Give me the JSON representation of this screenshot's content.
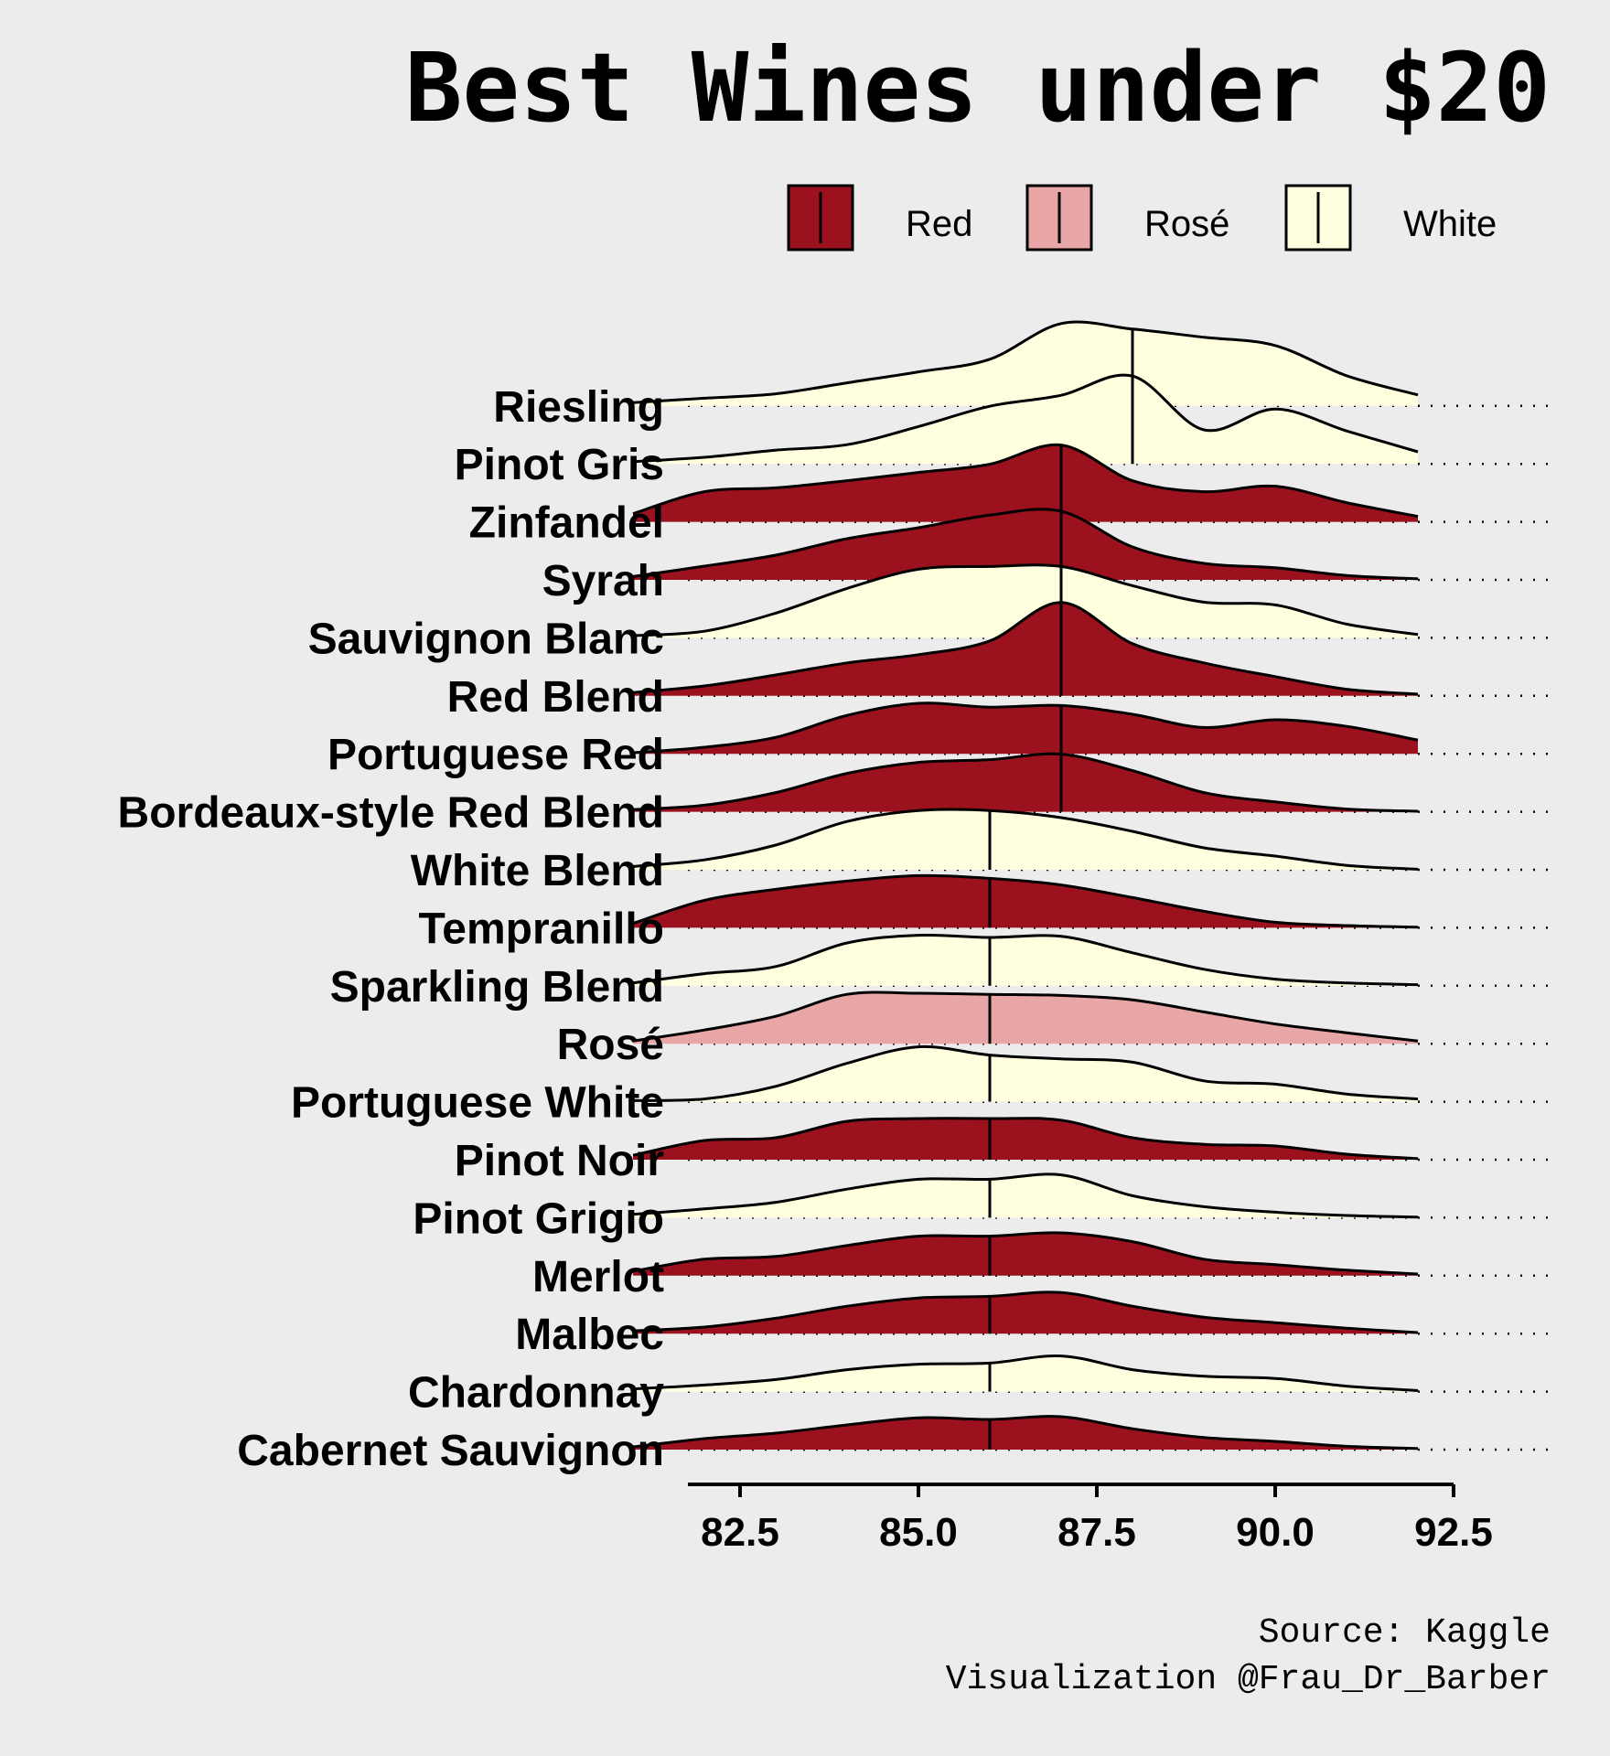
{
  "chart_data": {
    "type": "ridgeline",
    "title": "Best Wines under $20",
    "xlabel": "",
    "ylabel": "",
    "xlim": [
      80.8,
      92.5
    ],
    "x_ticks": [
      82.5,
      85.0,
      87.5,
      90.0,
      92.5
    ],
    "x_tick_labels": [
      "82.5",
      "85.0",
      "87.5",
      "90.0",
      "92.5"
    ],
    "x_range": [
      81,
      92
    ],
    "grid": false,
    "legend": {
      "placement": "top-right",
      "entries": [
        {
          "key": "Red",
          "label": "Red",
          "color": "#9b111e"
        },
        {
          "key": "Rosé",
          "label": "Rosé",
          "color": "#e8a6a6"
        },
        {
          "key": "White",
          "label": "White",
          "color": "#ffffe0"
        }
      ]
    },
    "density_x": [
      81,
      82,
      83,
      84,
      85,
      86,
      87,
      88,
      89,
      90,
      91,
      92
    ],
    "series": [
      {
        "name": "Cabernet Sauvignon",
        "type": "Red",
        "median": 86,
        "density": [
          0.05,
          0.2,
          0.3,
          0.45,
          0.58,
          0.55,
          0.6,
          0.38,
          0.22,
          0.15,
          0.06,
          0.02
        ]
      },
      {
        "name": "Chardonnay",
        "type": "White",
        "median": 86,
        "density": [
          0.05,
          0.12,
          0.22,
          0.4,
          0.5,
          0.52,
          0.65,
          0.4,
          0.28,
          0.24,
          0.1,
          0.02
        ]
      },
      {
        "name": "Malbec",
        "type": "Red",
        "median": 86,
        "density": [
          0.05,
          0.12,
          0.28,
          0.5,
          0.65,
          0.68,
          0.75,
          0.5,
          0.3,
          0.2,
          0.1,
          0.02
        ]
      },
      {
        "name": "Merlot",
        "type": "Red",
        "median": 86,
        "density": [
          0.08,
          0.3,
          0.35,
          0.55,
          0.72,
          0.72,
          0.78,
          0.62,
          0.3,
          0.2,
          0.1,
          0.03
        ]
      },
      {
        "name": "Pinot Grigio",
        "type": "White",
        "median": 86,
        "density": [
          0.06,
          0.16,
          0.28,
          0.52,
          0.7,
          0.7,
          0.78,
          0.4,
          0.2,
          0.1,
          0.04,
          0.01
        ]
      },
      {
        "name": "Pinot Noir",
        "type": "Red",
        "median": 86,
        "density": [
          0.08,
          0.35,
          0.4,
          0.7,
          0.75,
          0.75,
          0.72,
          0.4,
          0.28,
          0.25,
          0.1,
          0.02
        ]
      },
      {
        "name": "Portuguese White",
        "type": "White",
        "median": 86,
        "density": [
          0.02,
          0.05,
          0.28,
          0.7,
          1.0,
          0.85,
          0.78,
          0.72,
          0.38,
          0.32,
          0.14,
          0.05
        ]
      },
      {
        "name": "Rosé",
        "type": "Rosé",
        "median": 86,
        "density": [
          0.05,
          0.25,
          0.5,
          0.9,
          0.92,
          0.9,
          0.88,
          0.8,
          0.58,
          0.36,
          0.2,
          0.05
        ]
      },
      {
        "name": "Sparkling Blend",
        "type": "White",
        "median": 86,
        "density": [
          0.05,
          0.22,
          0.35,
          0.78,
          0.92,
          0.88,
          0.9,
          0.6,
          0.3,
          0.12,
          0.05,
          0.02
        ]
      },
      {
        "name": "Tempranillo",
        "type": "Red",
        "median": 86,
        "density": [
          0.08,
          0.5,
          0.7,
          0.85,
          0.95,
          0.9,
          0.78,
          0.55,
          0.3,
          0.1,
          0.04,
          0.01
        ]
      },
      {
        "name": "White Blend",
        "type": "White",
        "median": 86,
        "density": [
          0.06,
          0.18,
          0.45,
          0.88,
          1.08,
          1.08,
          0.95,
          0.7,
          0.4,
          0.25,
          0.08,
          0.01
        ]
      },
      {
        "name": "Bordeaux-style Red Blend",
        "type": "Red",
        "median": 87,
        "density": [
          0.04,
          0.12,
          0.35,
          0.7,
          0.9,
          0.95,
          1.05,
          0.75,
          0.35,
          0.18,
          0.05,
          0.01
        ]
      },
      {
        "name": "Portuguese Red",
        "type": "Red",
        "median": 87,
        "density": [
          0.02,
          0.12,
          0.3,
          0.7,
          0.92,
          0.85,
          0.88,
          0.72,
          0.48,
          0.62,
          0.5,
          0.25
        ]
      },
      {
        "name": "Red Blend",
        "type": "Red",
        "median": 87,
        "density": [
          0.06,
          0.18,
          0.38,
          0.6,
          0.75,
          1.0,
          1.7,
          0.95,
          0.6,
          0.35,
          0.12,
          0.03
        ]
      },
      {
        "name": "Sauvignon Blanc",
        "type": "White",
        "median": 87,
        "density": [
          0.04,
          0.12,
          0.45,
          0.9,
          1.25,
          1.3,
          1.3,
          0.95,
          0.65,
          0.6,
          0.25,
          0.06
        ]
      },
      {
        "name": "Syrah",
        "type": "Red",
        "median": 87,
        "density": [
          0.06,
          0.25,
          0.45,
          0.75,
          0.95,
          1.18,
          1.25,
          0.6,
          0.3,
          0.22,
          0.08,
          0.02
        ]
      },
      {
        "name": "Zinfandel",
        "type": "Red",
        "median": 87,
        "density": [
          0.15,
          0.55,
          0.62,
          0.75,
          0.9,
          1.05,
          1.4,
          0.75,
          0.55,
          0.65,
          0.35,
          0.1
        ]
      },
      {
        "name": "Pinot Gris",
        "type": "White",
        "median": 88,
        "density": [
          0.04,
          0.12,
          0.25,
          0.35,
          0.68,
          1.05,
          1.25,
          1.6,
          0.62,
          1.0,
          0.6,
          0.22
        ]
      },
      {
        "name": "Riesling",
        "type": "White",
        "median": 88,
        "density": [
          0.06,
          0.14,
          0.22,
          0.42,
          0.62,
          0.85,
          1.5,
          1.4,
          1.25,
          1.1,
          0.55,
          0.2
        ]
      }
    ],
    "source": "Source: Kaggle",
    "credit": "Visualization @Frau_Dr_Barber"
  }
}
